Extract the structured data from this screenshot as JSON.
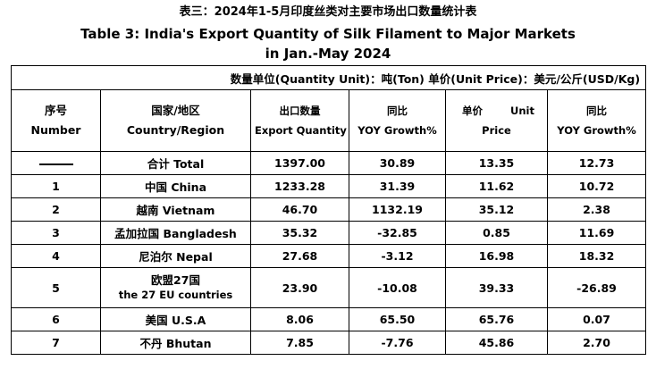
{
  "title": {
    "cn": "表三：2024年1-5月印度丝类对主要市场出口数量统计表",
    "en": "Table 3: India's Export Quantity of Silk Filament to Major Markets",
    "period": "in Jan.-May 2024"
  },
  "units": "数量单位(Quantity Unit)：吨(Ton)  单价(Unit Price)：美元/公斤(USD/Kg)",
  "headers": {
    "number": [
      "序号",
      "Number"
    ],
    "country": [
      "国家/地区",
      "Country/Region"
    ],
    "quantity": [
      "出口数量",
      "Export Quantity"
    ],
    "yoy1": [
      "同比",
      "YOY Growth%"
    ],
    "unit_price": [
      "单价",
      "Unit",
      "Price"
    ],
    "yoy2": [
      "同比",
      "YOY Growth%"
    ]
  },
  "rows": [
    {
      "num": "",
      "country": "合计 Total",
      "qty": "1397.00",
      "yoy_qty": "30.89",
      "price": "13.35",
      "yoy_price": "12.73"
    },
    {
      "num": "1",
      "country": "中国 China",
      "qty": "1233.28",
      "yoy_qty": "31.39",
      "price": "11.62",
      "yoy_price": "10.72"
    },
    {
      "num": "2",
      "country": "越南 Vietnam",
      "qty": "46.70",
      "yoy_qty": "1132.19",
      "price": "35.12",
      "yoy_price": "2.38"
    },
    {
      "num": "3",
      "country": "孟加拉国 Bangladesh",
      "qty": "35.32",
      "yoy_qty": "-32.85",
      "price": "0.85",
      "yoy_price": "11.69"
    },
    {
      "num": "4",
      "country": "尼泊尔 Nepal",
      "qty": "27.68",
      "yoy_qty": "-3.12",
      "price": "16.98",
      "yoy_price": "18.32"
    },
    {
      "num": "5",
      "country_cn": "欧盟27国",
      "country_en": "the 27 EU countries",
      "qty": "23.90",
      "yoy_qty": "-10.08",
      "price": "39.33",
      "yoy_price": "-26.89"
    },
    {
      "num": "6",
      "country": "美国 U.S.A",
      "qty": "8.06",
      "yoy_qty": "65.50",
      "price": "65.76",
      "yoy_price": "0.07"
    },
    {
      "num": "7",
      "country": "不丹 Bhutan",
      "qty": "7.85",
      "yoy_qty": "-7.76",
      "price": "45.86",
      "yoy_price": "2.70"
    }
  ]
}
